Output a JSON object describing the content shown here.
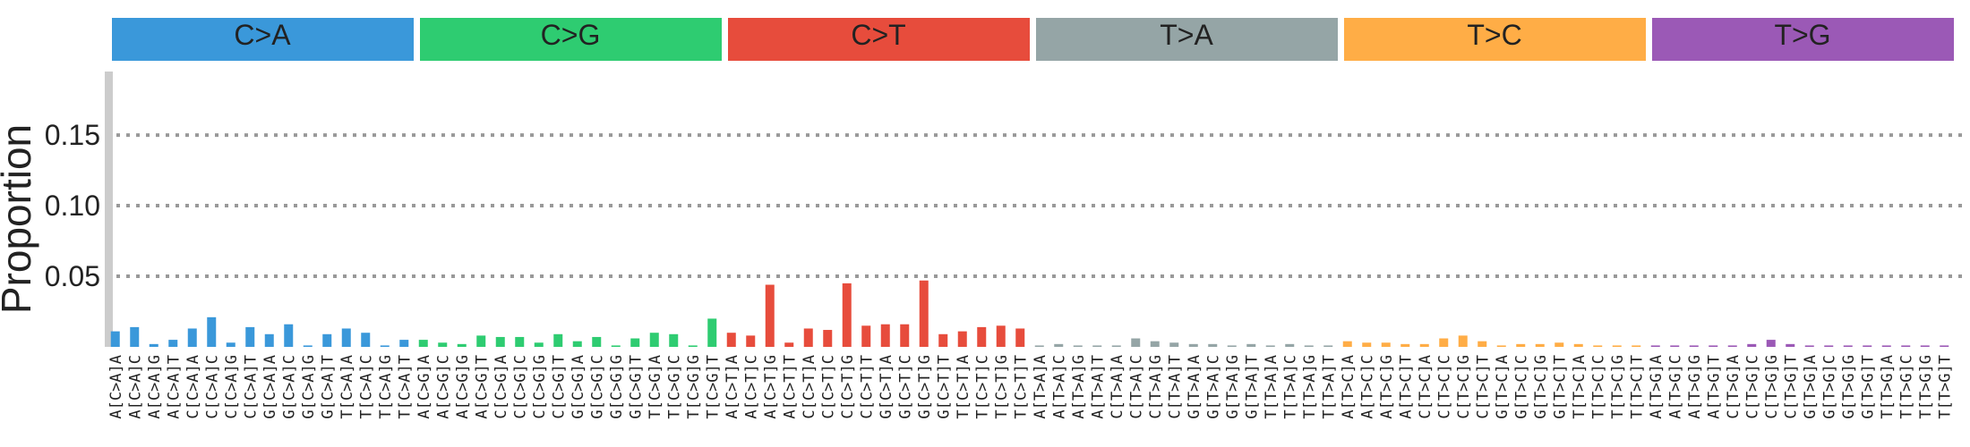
{
  "chart_data": {
    "type": "bar",
    "ylabel": "Proportion",
    "xlabel": "",
    "ylim": [
      0,
      0.195
    ],
    "yticks": [
      0.05,
      0.1,
      0.15
    ],
    "ytick_labels": [
      "0.05",
      "0.10",
      "0.15"
    ],
    "grid": "horizontal dotted",
    "groups": [
      {
        "name": "C>A",
        "color": "#3a98da",
        "categories": [
          "A[C>A]A",
          "A[C>A]C",
          "A[C>A]G",
          "A[C>A]T",
          "C[C>A]A",
          "C[C>A]C",
          "C[C>A]G",
          "C[C>A]T",
          "G[C>A]A",
          "G[C>A]C",
          "G[C>A]G",
          "G[C>A]T",
          "T[C>A]A",
          "T[C>A]C",
          "T[C>A]G",
          "T[C>A]T"
        ],
        "values": [
          0.011,
          0.014,
          0.002,
          0.005,
          0.013,
          0.021,
          0.003,
          0.014,
          0.009,
          0.016,
          0.001,
          0.009,
          0.013,
          0.01,
          0.001,
          0.005
        ]
      },
      {
        "name": "C>G",
        "color": "#2ecc71",
        "categories": [
          "A[C>G]A",
          "A[C>G]C",
          "A[C>G]G",
          "A[C>G]T",
          "C[C>G]A",
          "C[C>G]C",
          "C[C>G]G",
          "C[C>G]T",
          "G[C>G]A",
          "G[C>G]C",
          "G[C>G]G",
          "G[C>G]T",
          "T[C>G]A",
          "T[C>G]C",
          "T[C>G]G",
          "T[C>G]T"
        ],
        "values": [
          0.005,
          0.003,
          0.002,
          0.008,
          0.007,
          0.007,
          0.003,
          0.009,
          0.004,
          0.007,
          0.001,
          0.006,
          0.01,
          0.009,
          0.001,
          0.02
        ]
      },
      {
        "name": "C>T",
        "color": "#e74c3c",
        "categories": [
          "A[C>T]A",
          "A[C>T]C",
          "A[C>T]G",
          "A[C>T]T",
          "C[C>T]A",
          "C[C>T]C",
          "C[C>T]G",
          "C[C>T]T",
          "G[C>T]A",
          "G[C>T]C",
          "G[C>T]G",
          "G[C>T]T",
          "T[C>T]A",
          "T[C>T]C",
          "T[C>T]G",
          "T[C>T]T"
        ],
        "values": [
          0.01,
          0.008,
          0.044,
          0.003,
          0.013,
          0.012,
          0.045,
          0.015,
          0.016,
          0.016,
          0.047,
          0.009,
          0.011,
          0.014,
          0.015,
          0.013
        ]
      },
      {
        "name": "T>A",
        "color": "#95a5a6",
        "categories": [
          "A[T>A]A",
          "A[T>A]C",
          "A[T>A]G",
          "A[T>A]T",
          "C[T>A]A",
          "C[T>A]C",
          "C[T>A]G",
          "C[T>A]T",
          "G[T>A]A",
          "G[T>A]C",
          "G[T>A]G",
          "G[T>A]T",
          "T[T>A]A",
          "T[T>A]C",
          "T[T>A]G",
          "T[T>A]T"
        ],
        "values": [
          0.001,
          0.002,
          0.001,
          0.001,
          0.001,
          0.006,
          0.004,
          0.003,
          0.002,
          0.002,
          0.001,
          0.002,
          0.001,
          0.002,
          0.001,
          0.001
        ]
      },
      {
        "name": "T>C",
        "color": "#ffad46",
        "categories": [
          "A[T>C]A",
          "A[T>C]C",
          "A[T>C]G",
          "A[T>C]T",
          "C[T>C]A",
          "C[T>C]C",
          "C[T>C]G",
          "C[T>C]T",
          "G[T>C]A",
          "G[T>C]C",
          "G[T>C]G",
          "G[T>C]T",
          "T[T>C]A",
          "T[T>C]C",
          "T[T>C]G",
          "T[T>C]T"
        ],
        "values": [
          0.004,
          0.003,
          0.003,
          0.002,
          0.002,
          0.006,
          0.008,
          0.004,
          0.001,
          0.002,
          0.002,
          0.003,
          0.002,
          0.001,
          0.001,
          0.001
        ]
      },
      {
        "name": "T>G",
        "color": "#9b59b6",
        "categories": [
          "A[T>G]A",
          "A[T>G]C",
          "A[T>G]G",
          "A[T>G]T",
          "C[T>G]A",
          "C[T>G]C",
          "C[T>G]G",
          "C[T>G]T",
          "G[T>G]A",
          "G[T>G]C",
          "G[T>G]G",
          "G[T>G]T",
          "T[T>G]A",
          "T[T>G]C",
          "T[T>G]G",
          "T[T>G]T"
        ],
        "values": [
          0.001,
          0.001,
          0.001,
          0.001,
          0.001,
          0.002,
          0.005,
          0.002,
          0.001,
          0.001,
          0.001,
          0.001,
          0.001,
          0.001,
          0.001,
          0.001
        ]
      }
    ]
  },
  "colors": {
    "background": "#ffffff",
    "axis_bar": "#cccccc",
    "grid": "#999999",
    "text": "#222222"
  }
}
